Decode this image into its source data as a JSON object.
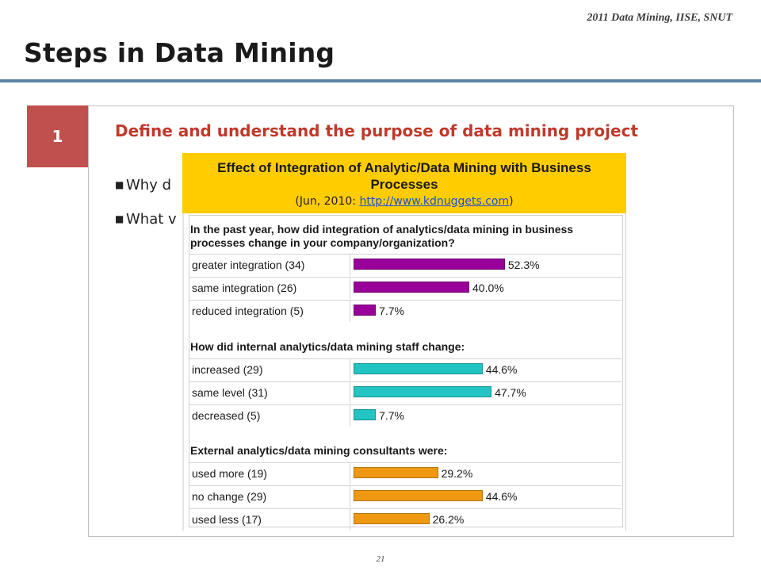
{
  "header": {
    "note": "2011 Data Mining, IISE, SNUT"
  },
  "slide": {
    "title": "Steps in Data Mining",
    "step_number": "1",
    "step_heading": "Define and understand the purpose of data mining project",
    "bullets": [
      "Why d",
      "What v"
    ],
    "page_number": "21"
  },
  "figure": {
    "banner_title": "Effect of Integration of Analytic/Data Mining with Business Processes",
    "source_prefix": "(Jun, 2010: ",
    "source_link": "http://www.kdnuggets.com",
    "source_suffix": ")",
    "colors": {
      "banner": "#ffcc00",
      "integration": "#990099",
      "staff": "#22c4c4",
      "consultants": "#ee9911"
    }
  },
  "chart_data": [
    {
      "type": "bar",
      "title": "In the past year, how did integration of analytics/data mining in business processes change in your company/organization?",
      "categories": [
        "greater integration (34)",
        "same integration (26)",
        "reduced integration (5)"
      ],
      "values": [
        52.3,
        40.0,
        7.7
      ],
      "value_labels": [
        "52.3%",
        "40.0%",
        "7.7%"
      ],
      "color": "#990099"
    },
    {
      "type": "bar",
      "title": "How did internal analytics/data mining staff change:",
      "categories": [
        "increased (29)",
        "same level (31)",
        "decreased (5)"
      ],
      "values": [
        44.6,
        47.7,
        7.7
      ],
      "value_labels": [
        "44.6%",
        "47.7%",
        "7.7%"
      ],
      "color": "#22c4c4"
    },
    {
      "type": "bar",
      "title": "External analytics/data mining consultants were:",
      "categories": [
        "used more (19)",
        "no change (29)",
        "used less (17)"
      ],
      "values": [
        29.2,
        44.6,
        26.2
      ],
      "value_labels": [
        "29.2%",
        "44.6%",
        "26.2%"
      ],
      "color": "#ee9911"
    }
  ]
}
